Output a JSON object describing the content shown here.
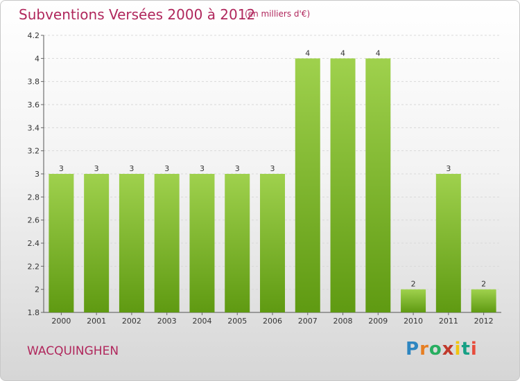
{
  "header": {
    "title": "Subventions Versées 2000 à 2012",
    "unit_note": "(en milliers d'€)"
  },
  "footer": {
    "commune": "WACQUINGHEN",
    "brand": [
      "P",
      "r",
      "o",
      "x",
      "i",
      "t",
      "i"
    ]
  },
  "colors": {
    "title": "#b0275c",
    "bar_top": "#9fd14d",
    "bar_bottom": "#5f9a12",
    "brand": [
      "#2e86c1",
      "#e67e22",
      "#27ae60",
      "#c0392b",
      "#f1c40f",
      "#16a085",
      "#e74c3c"
    ]
  },
  "chart_data": {
    "type": "bar",
    "title": "Subventions Versées 2000 à 2012",
    "ylabel": "",
    "xlabel": "",
    "categories": [
      "2000",
      "2001",
      "2002",
      "2003",
      "2004",
      "2005",
      "2006",
      "2007",
      "2008",
      "2009",
      "2010",
      "2011",
      "2012"
    ],
    "values": [
      3,
      3,
      3,
      3,
      3,
      3,
      3,
      4,
      4,
      4,
      2,
      3,
      2
    ],
    "data_labels": [
      "3",
      "3",
      "3",
      "3",
      "3",
      "3",
      "3",
      "4",
      "4",
      "4",
      "2",
      "3",
      "2"
    ],
    "ylim": [
      1.8,
      4.2
    ],
    "yticks": [
      "1.8",
      "2",
      "2.2",
      "2.4",
      "2.6",
      "2.8",
      "3",
      "3.2",
      "3.4",
      "3.6",
      "3.8",
      "4",
      "4.2"
    ],
    "grid": true
  }
}
